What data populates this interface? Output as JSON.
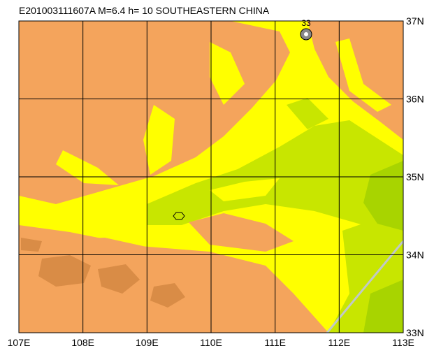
{
  "title": "E201003111607A M=6.4 h= 10 SOUTHEASTERN CHINA",
  "map": {
    "lon_labels": [
      "107E",
      "108E",
      "109E",
      "110E",
      "111E",
      "112E",
      "113E"
    ],
    "lat_labels": [
      "37N",
      "36N",
      "35N",
      "34N",
      "33N"
    ],
    "station": {
      "label": "33"
    }
  }
}
